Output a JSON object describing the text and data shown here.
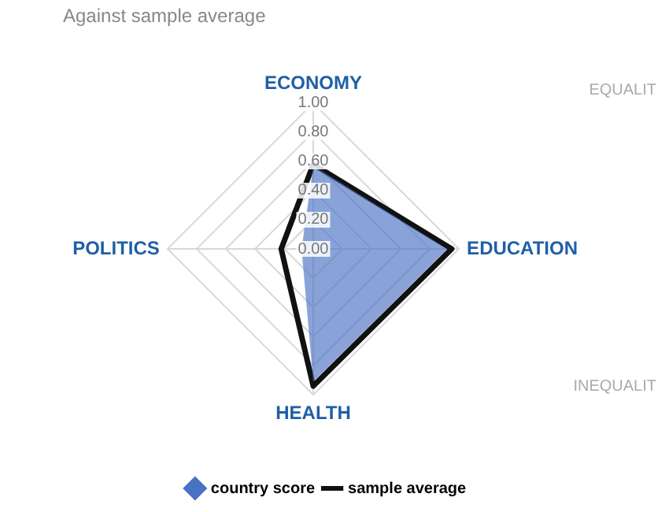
{
  "chart_data": {
    "type": "radar",
    "title": "Against sample average",
    "categories": [
      "ECONOMY",
      "EDUCATION",
      "HEALTH",
      "POLITICS"
    ],
    "series": [
      {
        "name": "country score",
        "color": "#4a72c4",
        "values": [
          0.57,
          0.92,
          0.91,
          0.08
        ],
        "marker": "diamond"
      },
      {
        "name": "sample average",
        "color": "#111111",
        "values": [
          0.58,
          0.95,
          0.94,
          0.22
        ]
      }
    ],
    "ylim": [
      0,
      1
    ],
    "yticks": [
      {
        "value": 0,
        "label": "0.00"
      },
      {
        "value": 0.2,
        "label": "0.20"
      },
      {
        "value": 0.4,
        "label": "0.40"
      },
      {
        "value": 0.6,
        "label": "0.60"
      },
      {
        "value": 0.8,
        "label": "0.80"
      },
      {
        "value": 1,
        "label": "1.00"
      }
    ],
    "grid": true,
    "legend": "bottom",
    "annotations": [
      "EQUALIT",
      "INEQUALIT"
    ]
  }
}
